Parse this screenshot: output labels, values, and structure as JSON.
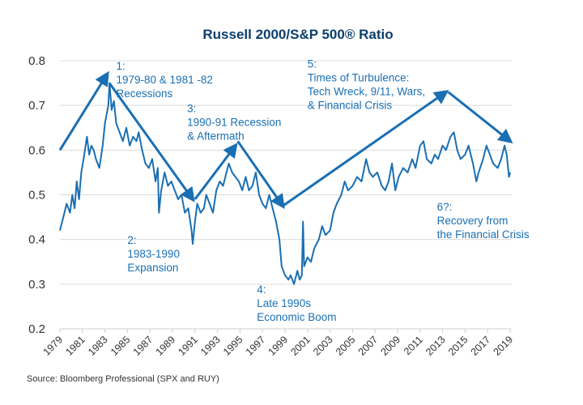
{
  "chart_data": {
    "type": "line",
    "title": "Russell 2000/S&P 500® Ratio",
    "xlabel": "",
    "ylabel": "",
    "xlim": [
      1979,
      2019
    ],
    "ylim": [
      0.2,
      0.8
    ],
    "grid": true,
    "legend": "none",
    "yticks": [
      "0.2",
      "0.3",
      "0.4",
      "0.5",
      "0.6",
      "0.7",
      "0.8"
    ],
    "ytick_values": [
      0.2,
      0.3,
      0.4,
      0.5,
      0.6,
      0.7,
      0.8
    ],
    "xticks": [
      "1979",
      "1981",
      "1983",
      "1985",
      "1987",
      "1989",
      "1991",
      "1993",
      "1995",
      "1997",
      "1999",
      "2001",
      "2003",
      "2005",
      "2007",
      "2009",
      "2011",
      "2013",
      "2015",
      "2017",
      "2019"
    ],
    "xtick_values": [
      1979,
      1981,
      1983,
      1985,
      1987,
      1989,
      1991,
      1993,
      1995,
      1997,
      1999,
      2001,
      2003,
      2005,
      2007,
      2009,
      2011,
      2013,
      2015,
      2017,
      2019
    ],
    "line_color": "#1a6fb3",
    "series": [
      {
        "name": "Russell 2000/S&P 500 Ratio",
        "x": [
          1979.0,
          1979.3,
          1979.6,
          1979.9,
          1980.1,
          1980.3,
          1980.5,
          1980.7,
          1980.9,
          1981.1,
          1981.4,
          1981.6,
          1981.8,
          1982.0,
          1982.2,
          1982.5,
          1982.8,
          1983.0,
          1983.3,
          1983.4,
          1983.6,
          1983.8,
          1984.0,
          1984.3,
          1984.6,
          1984.9,
          1985.2,
          1985.5,
          1985.8,
          1986.0,
          1986.3,
          1986.6,
          1986.9,
          1987.2,
          1987.5,
          1987.7,
          1987.8,
          1988.0,
          1988.3,
          1988.6,
          1988.9,
          1989.2,
          1989.5,
          1989.8,
          1990.1,
          1990.4,
          1990.7,
          1990.8,
          1991.0,
          1991.2,
          1991.5,
          1991.8,
          1992.0,
          1992.3,
          1992.6,
          1992.9,
          1993.2,
          1993.5,
          1993.8,
          1994.0,
          1994.3,
          1994.6,
          1994.9,
          1995.2,
          1995.5,
          1995.8,
          1996.1,
          1996.4,
          1996.7,
          1997.0,
          1997.3,
          1997.6,
          1997.9,
          1998.2,
          1998.5,
          1998.7,
          1999.0,
          1999.3,
          1999.5,
          1999.8,
          2000.1,
          2000.3,
          2000.5,
          2000.6,
          2000.7,
          2001.0,
          2001.3,
          2001.6,
          2002.0,
          2002.3,
          2002.6,
          2003.0,
          2003.3,
          2003.6,
          2004.0,
          2004.3,
          2004.6,
          2005.0,
          2005.4,
          2005.8,
          2006.2,
          2006.5,
          2006.8,
          2007.2,
          2007.6,
          2007.9,
          2008.2,
          2008.5,
          2008.8,
          2009.1,
          2009.5,
          2009.9,
          2010.3,
          2010.6,
          2011.0,
          2011.3,
          2011.6,
          2012.0,
          2012.3,
          2012.6,
          2013.0,
          2013.3,
          2013.7,
          2014.0,
          2014.3,
          2014.6,
          2015.0,
          2015.3,
          2015.7,
          2016.0,
          2016.2,
          2016.6,
          2016.9,
          2017.2,
          2017.5,
          2017.9,
          2018.2,
          2018.5,
          2018.7,
          2018.9,
          2019.0
        ],
        "values": [
          0.42,
          0.45,
          0.48,
          0.46,
          0.5,
          0.47,
          0.53,
          0.49,
          0.55,
          0.58,
          0.63,
          0.59,
          0.61,
          0.6,
          0.58,
          0.56,
          0.61,
          0.66,
          0.7,
          0.75,
          0.69,
          0.71,
          0.66,
          0.64,
          0.62,
          0.65,
          0.61,
          0.63,
          0.62,
          0.64,
          0.6,
          0.57,
          0.56,
          0.58,
          0.53,
          0.56,
          0.46,
          0.51,
          0.55,
          0.52,
          0.53,
          0.51,
          0.49,
          0.5,
          0.46,
          0.47,
          0.42,
          0.39,
          0.44,
          0.48,
          0.46,
          0.47,
          0.5,
          0.48,
          0.46,
          0.51,
          0.53,
          0.52,
          0.55,
          0.57,
          0.55,
          0.54,
          0.53,
          0.51,
          0.54,
          0.51,
          0.52,
          0.55,
          0.5,
          0.48,
          0.47,
          0.5,
          0.47,
          0.44,
          0.4,
          0.34,
          0.32,
          0.31,
          0.32,
          0.3,
          0.33,
          0.31,
          0.32,
          0.44,
          0.34,
          0.36,
          0.35,
          0.38,
          0.4,
          0.43,
          0.41,
          0.42,
          0.46,
          0.48,
          0.5,
          0.53,
          0.51,
          0.52,
          0.54,
          0.53,
          0.58,
          0.55,
          0.54,
          0.55,
          0.52,
          0.51,
          0.53,
          0.57,
          0.51,
          0.54,
          0.56,
          0.55,
          0.58,
          0.56,
          0.61,
          0.62,
          0.58,
          0.57,
          0.59,
          0.58,
          0.61,
          0.6,
          0.63,
          0.64,
          0.6,
          0.58,
          0.59,
          0.61,
          0.57,
          0.53,
          0.55,
          0.58,
          0.61,
          0.59,
          0.57,
          0.56,
          0.58,
          0.61,
          0.59,
          0.54,
          0.55
        ]
      }
    ],
    "trend_arrows": [
      {
        "from": [
          1979.0,
          0.6
        ],
        "to": [
          1983.2,
          0.77
        ]
      },
      {
        "from": [
          1983.4,
          0.75
        ],
        "to": [
          1990.8,
          0.49
        ]
      },
      {
        "from": [
          1991.0,
          0.49
        ],
        "to": [
          1994.6,
          0.61
        ]
      },
      {
        "from": [
          1994.8,
          0.62
        ],
        "to": [
          1998.8,
          0.475
        ]
      },
      {
        "from": [
          1998.8,
          0.475
        ],
        "to": [
          2013.3,
          0.73
        ]
      },
      {
        "from": [
          2013.5,
          0.73
        ],
        "to": [
          2019.0,
          0.62
        ]
      }
    ],
    "annotations": [
      {
        "id": "1",
        "lines": [
          "1:",
          "1979-80 & 1981 -82",
          "Recessions"
        ],
        "at": [
          1984.0,
          0.78
        ]
      },
      {
        "id": "2",
        "lines": [
          "2:",
          "1983-1990",
          "Expansion"
        ],
        "at": [
          1985.0,
          0.39
        ]
      },
      {
        "id": "3",
        "lines": [
          "3:",
          "1990-91 Recession",
          "& Aftermath"
        ],
        "at": [
          1990.3,
          0.685
        ]
      },
      {
        "id": "4",
        "lines": [
          "4:",
          "Late 1990s",
          "Economic Boom"
        ],
        "at": [
          1996.5,
          0.28
        ]
      },
      {
        "id": "5",
        "lines": [
          "5:",
          "Times of Turbulence:",
          "Tech Wreck, 9/11, Wars,",
          "& Financial Crisis"
        ],
        "at": [
          2001.0,
          0.785
        ]
      },
      {
        "id": "6",
        "lines": [
          "6?:",
          "Recovery from",
          "the Financial Crisis"
        ],
        "at": [
          2012.5,
          0.465
        ]
      }
    ],
    "source": "Source: Bloomberg Professional (SPX and RUY)"
  }
}
